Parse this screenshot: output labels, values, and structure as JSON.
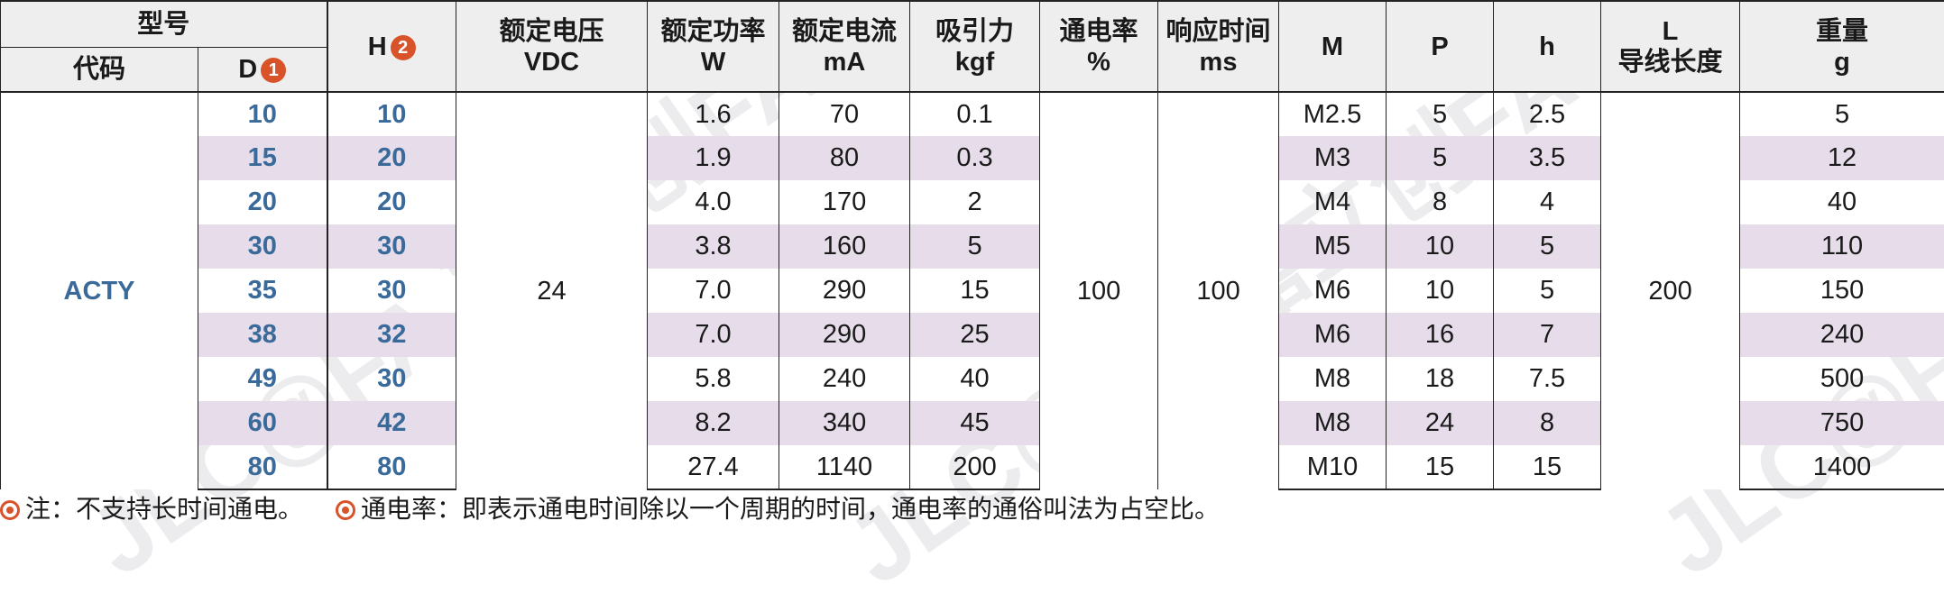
{
  "headers": {
    "model": "型号",
    "code": "代码",
    "d": "D",
    "d_badge": "1",
    "h": "H",
    "h_badge": "2",
    "voltage": [
      "额定电压",
      "VDC"
    ],
    "power": [
      "额定功率",
      "W"
    ],
    "current": [
      "额定电流",
      "mA"
    ],
    "force": [
      "吸引力",
      "kgf"
    ],
    "duty": [
      "通电率",
      "%"
    ],
    "response": [
      "响应时间",
      "ms"
    ],
    "m": "M",
    "p": "P",
    "hh": "h",
    "lead": [
      "L",
      "导线长度"
    ],
    "weight": [
      "重量",
      "g"
    ]
  },
  "shared": {
    "code": "ACTY",
    "voltage": "24",
    "duty": "100",
    "response": "100",
    "lead": "200"
  },
  "rows": [
    {
      "d": "10",
      "h": "10",
      "w": "1.6",
      "ma": "70",
      "kgf": "0.1",
      "m": "M2.5",
      "p": "5",
      "hh": "2.5",
      "g": "5"
    },
    {
      "d": "15",
      "h": "20",
      "w": "1.9",
      "ma": "80",
      "kgf": "0.3",
      "m": "M3",
      "p": "5",
      "hh": "3.5",
      "g": "12"
    },
    {
      "d": "20",
      "h": "20",
      "w": "4.0",
      "ma": "170",
      "kgf": "2",
      "m": "M4",
      "p": "8",
      "hh": "4",
      "g": "40"
    },
    {
      "d": "30",
      "h": "30",
      "w": "3.8",
      "ma": "160",
      "kgf": "5",
      "m": "M5",
      "p": "10",
      "hh": "5",
      "g": "110"
    },
    {
      "d": "35",
      "h": "30",
      "w": "7.0",
      "ma": "290",
      "kgf": "15",
      "m": "M6",
      "p": "10",
      "hh": "5",
      "g": "150"
    },
    {
      "d": "38",
      "h": "32",
      "w": "7.0",
      "ma": "290",
      "kgf": "25",
      "m": "M6",
      "p": "16",
      "hh": "7",
      "g": "240"
    },
    {
      "d": "49",
      "h": "30",
      "w": "5.8",
      "ma": "240",
      "kgf": "40",
      "m": "M8",
      "p": "18",
      "hh": "7.5",
      "g": "500"
    },
    {
      "d": "60",
      "h": "42",
      "w": "8.2",
      "ma": "340",
      "kgf": "45",
      "m": "M8",
      "p": "24",
      "hh": "8",
      "g": "750"
    },
    {
      "d": "80",
      "h": "80",
      "w": "27.4",
      "ma": "1140",
      "kgf": "200",
      "m": "M10",
      "p": "15",
      "hh": "15",
      "g": "1400"
    }
  ],
  "notes": {
    "note1": "注：不支持长时间通电。",
    "note2": "通电率：即表示通电时间除以一个周期的时间，通电率的通俗叫法为占空比。"
  },
  "watermark": "JLC@FA 嘉立创FA",
  "colors": {
    "accent": "#d9532a",
    "code_blue": "#3a6a9a",
    "stripe": "#e6dcea",
    "header_bg": "#eeeeee"
  }
}
